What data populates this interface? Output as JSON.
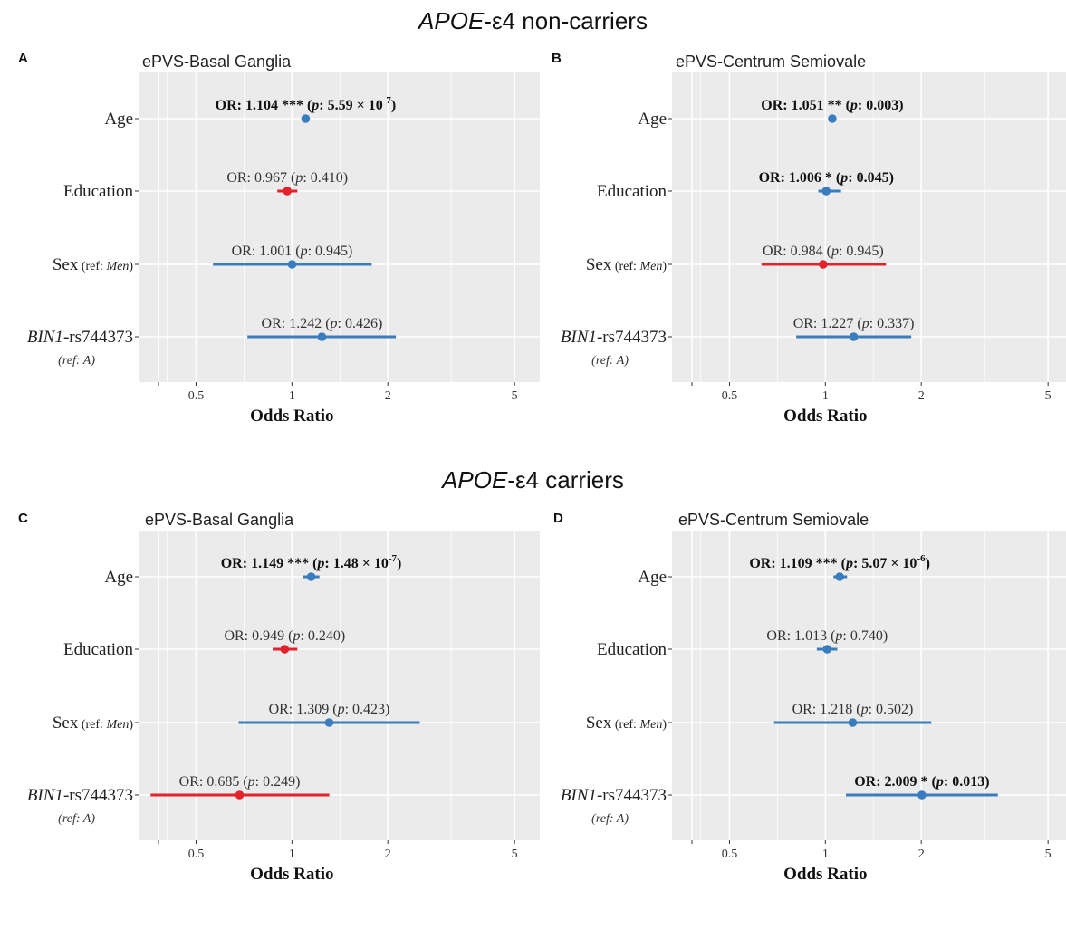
{
  "sections": [
    {
      "gene": "APOE",
      "rest": "-ε4 non-carriers"
    },
    {
      "gene": "APOE",
      "rest": "-ε4 carriers"
    }
  ],
  "colors": {
    "positive": "#3a7dbf",
    "negative": "#e3222b",
    "panel_bg": "#ebebeb",
    "grid": "#ffffff"
  },
  "chart_data": [
    {
      "type": "forest",
      "panel": "A",
      "title": "ePVS-Basal Ganglia",
      "xlabel": "Odds Ratio",
      "xscale": "log",
      "xlim": [
        0.33,
        6
      ],
      "x_ticks": [
        0.5,
        1,
        2,
        5
      ],
      "x_tick_labels": [
        "0.5",
        "1",
        "2",
        "5"
      ],
      "grid": true,
      "rows": [
        {
          "label": "Age",
          "or": 1.104,
          "ci": [
            1.104,
            1.104
          ],
          "text": "OR: 1.104 *** (p: 5.59 × 10^-7)",
          "parts": {
            "pre": "OR: 1.104 *** (",
            "p": "p",
            "mid": ": 5.59 × 10",
            "exp": "-7",
            "post": ")"
          },
          "bold": true,
          "color": "#3a7dbf"
        },
        {
          "label": "Education",
          "or": 0.967,
          "ci": [
            0.9,
            1.04
          ],
          "text": "OR: 0.967 (p: 0.410)",
          "parts": {
            "pre": "OR: 0.967 (",
            "p": "p",
            "mid": ": 0.410)",
            "exp": "",
            "post": ""
          },
          "bold": false,
          "color": "#e3222b"
        },
        {
          "label": "Sex",
          "sublabel": "(ref: Men)",
          "or": 1.001,
          "ci": [
            0.565,
            1.78
          ],
          "text": "OR: 1.001 (p: 0.945)",
          "parts": {
            "pre": "OR: 1.001 (",
            "p": "p",
            "mid": ": 0.945)",
            "exp": "",
            "post": ""
          },
          "bold": false,
          "color": "#3a7dbf"
        },
        {
          "label": "BIN1-rs744373",
          "sublabel": "(ref: A)",
          "or": 1.242,
          "ci": [
            0.725,
            2.12
          ],
          "text": "OR: 1.242 (p: 0.426)",
          "parts": {
            "pre": "OR: 1.242 (",
            "p": "p",
            "mid": ": 0.426)",
            "exp": "",
            "post": ""
          },
          "bold": false,
          "color": "#3a7dbf"
        }
      ]
    },
    {
      "type": "forest",
      "panel": "B",
      "title": "ePVS-Centrum Semiovale",
      "xlabel": "Odds Ratio",
      "xscale": "log",
      "xlim": [
        0.33,
        6
      ],
      "x_ticks": [
        0.5,
        1,
        2,
        5
      ],
      "x_tick_labels": [
        "0.5",
        "1",
        "2",
        "5"
      ],
      "grid": true,
      "rows": [
        {
          "label": "Age",
          "or": 1.051,
          "ci": [
            1.051,
            1.051
          ],
          "text": "OR: 1.051 ** (p: 0.003)",
          "parts": {
            "pre": "OR: 1.051 ** (",
            "p": "p",
            "mid": ": 0.003)",
            "exp": "",
            "post": ""
          },
          "bold": true,
          "color": "#3a7dbf"
        },
        {
          "label": "Education",
          "or": 1.006,
          "ci": [
            0.95,
            1.12
          ],
          "text": "OR: 1.006 * (p: 0.045)",
          "parts": {
            "pre": "OR: 1.006 * (",
            "p": "p",
            "mid": ": 0.045)",
            "exp": "",
            "post": ""
          },
          "bold": true,
          "color": "#3a7dbf"
        },
        {
          "label": "Sex",
          "sublabel": "(ref: Men)",
          "or": 0.984,
          "ci": [
            0.63,
            1.55
          ],
          "text": "OR: 0.984 (p: 0.945)",
          "parts": {
            "pre": "OR: 0.984 (",
            "p": "p",
            "mid": ": 0.945)",
            "exp": "",
            "post": ""
          },
          "bold": false,
          "color": "#e3222b"
        },
        {
          "label": "BIN1-rs744373",
          "sublabel": "(ref: A)",
          "or": 1.227,
          "ci": [
            0.81,
            1.86
          ],
          "text": "OR: 1.227 (p: 0.337)",
          "parts": {
            "pre": "OR: 1.227 (",
            "p": "p",
            "mid": ": 0.337)",
            "exp": "",
            "post": ""
          },
          "bold": false,
          "color": "#3a7dbf"
        }
      ]
    },
    {
      "type": "forest",
      "panel": "C",
      "title": "ePVS-Basal Ganglia",
      "xlabel": "Odds Ratio",
      "xscale": "log",
      "xlim": [
        0.33,
        6
      ],
      "x_ticks": [
        0.5,
        1,
        2,
        5
      ],
      "x_tick_labels": [
        "0.5",
        "1",
        "2",
        "5"
      ],
      "grid": true,
      "rows": [
        {
          "label": "Age",
          "or": 1.149,
          "ci": [
            1.08,
            1.22
          ],
          "text": "OR: 1.149 *** (p: 1.48 × 10^-7)",
          "parts": {
            "pre": "OR: 1.149 *** (",
            "p": "p",
            "mid": ": 1.48 × 10",
            "exp": "-7",
            "post": ")"
          },
          "bold": true,
          "color": "#3a7dbf"
        },
        {
          "label": "Education",
          "or": 0.949,
          "ci": [
            0.87,
            1.04
          ],
          "text": "OR: 0.949 (p: 0.240)",
          "parts": {
            "pre": "OR: 0.949 (",
            "p": "p",
            "mid": ": 0.240)",
            "exp": "",
            "post": ""
          },
          "bold": false,
          "color": "#e3222b"
        },
        {
          "label": "Sex",
          "sublabel": "(ref: Men)",
          "or": 1.309,
          "ci": [
            0.68,
            2.52
          ],
          "text": "OR: 1.309 (p: 0.423)",
          "parts": {
            "pre": "OR: 1.309 (",
            "p": "p",
            "mid": ": 0.423)",
            "exp": "",
            "post": ""
          },
          "bold": false,
          "color": "#3a7dbf"
        },
        {
          "label": "BIN1-rs744373",
          "sublabel": "(ref: A)",
          "or": 0.685,
          "ci": [
            0.36,
            1.31
          ],
          "text": "OR: 0.685 (p: 0.249)",
          "parts": {
            "pre": "OR: 0.685 (",
            "p": "p",
            "mid": ": 0.249)",
            "exp": "",
            "post": ""
          },
          "bold": false,
          "color": "#e3222b"
        }
      ]
    },
    {
      "type": "forest",
      "panel": "D",
      "title": "ePVS-Centrum Semiovale",
      "xlabel": "Odds Ratio",
      "xscale": "log",
      "xlim": [
        0.33,
        6
      ],
      "x_ticks": [
        0.5,
        1,
        2,
        5
      ],
      "x_tick_labels": [
        "0.5",
        "1",
        "2",
        "5"
      ],
      "grid": true,
      "rows": [
        {
          "label": "Age",
          "or": 1.109,
          "ci": [
            1.06,
            1.17
          ],
          "text": "OR: 1.109 *** (p: 5.07 × 10^-6)",
          "parts": {
            "pre": "OR: 1.109 *** (",
            "p": "p",
            "mid": ": 5.07 × 10",
            "exp": "-6",
            "post": ")"
          },
          "bold": true,
          "color": "#3a7dbf"
        },
        {
          "label": "Education",
          "or": 1.013,
          "ci": [
            0.94,
            1.09
          ],
          "text": "OR: 1.013 (p: 0.740)",
          "parts": {
            "pre": "OR: 1.013 (",
            "p": "p",
            "mid": ": 0.740)",
            "exp": "",
            "post": ""
          },
          "bold": false,
          "color": "#3a7dbf"
        },
        {
          "label": "Sex",
          "sublabel": "(ref: Men)",
          "or": 1.218,
          "ci": [
            0.69,
            2.15
          ],
          "text": "OR: 1.218 (p: 0.502)",
          "parts": {
            "pre": "OR: 1.218 (",
            "p": "p",
            "mid": ": 0.502)",
            "exp": "",
            "post": ""
          },
          "bold": false,
          "color": "#3a7dbf"
        },
        {
          "label": "BIN1-rs744373",
          "sublabel": "(ref: A)",
          "or": 2.009,
          "ci": [
            1.16,
            3.48
          ],
          "text": "OR: 2.009 * (p: 0.013)",
          "parts": {
            "pre": "OR: 2.009 * (",
            "p": "p",
            "mid": ": 0.013)",
            "exp": "",
            "post": ""
          },
          "bold": true,
          "color": "#3a7dbf"
        }
      ]
    }
  ]
}
